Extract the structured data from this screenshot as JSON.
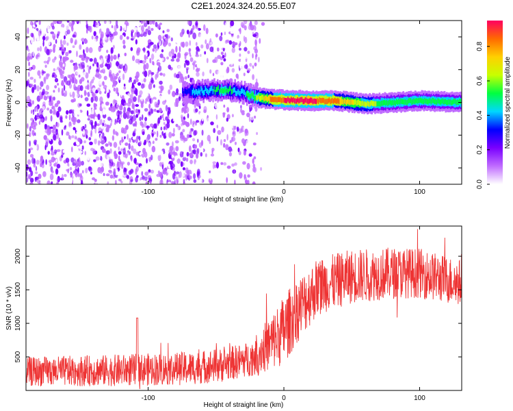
{
  "title": "C2E1.2024.324.20.55.E07",
  "chart_data": [
    {
      "type": "heatmap",
      "xlabel": "Height of straight line (km)",
      "ylabel": "Frequency (Hz)",
      "xlim": [
        -190,
        131
      ],
      "ylim": [
        -50,
        50
      ],
      "xticks": [
        -100,
        0,
        100
      ],
      "yticks": [
        -40,
        -20,
        0,
        20,
        40
      ],
      "colorbar": {
        "label": "Normalized spectral amplitude",
        "range": [
          0,
          0.95
        ],
        "ticks": [
          0.0,
          0.2,
          0.4,
          0.6,
          0.8
        ],
        "colors": [
          "#ffffff",
          "#c06cff",
          "#7a00ff",
          "#0000ff",
          "#00d8ff",
          "#00ff40",
          "#c8ff00",
          "#ffd000",
          "#ff6a00",
          "#ff0060"
        ]
      },
      "regions": [
        {
          "x_from": -190,
          "x_to": -20,
          "description": "broadband noise",
          "amplitude": 0.12
        },
        {
          "x_from": -75,
          "x_to": -20,
          "center_hz": 6,
          "amplitude": 0.4
        },
        {
          "x_from": -20,
          "x_to": 40,
          "center_hz": 1,
          "amplitude": 0.9
        },
        {
          "x_from": 40,
          "x_to": 131,
          "center_hz": 0,
          "amplitude": 0.55
        }
      ]
    },
    {
      "type": "line",
      "xlabel": "Height of straight line (km)",
      "ylabel": "SNR (10 * v/v)",
      "xlim": [
        -190,
        131
      ],
      "ylim": [
        0,
        2450
      ],
      "xticks": [
        -100,
        0,
        100
      ],
      "yticks": [
        500,
        1000,
        1500,
        2000
      ],
      "color": "#ee3333",
      "trend": {
        "x": [
          -190,
          -120,
          -70,
          -45,
          -25,
          -10,
          0,
          10,
          25,
          50,
          80,
          100,
          120,
          131
        ],
        "y": [
          280,
          300,
          330,
          380,
          470,
          700,
          900,
          1200,
          1550,
          1700,
          1750,
          1750,
          1650,
          1600
        ]
      },
      "spread": {
        "x": [
          -190,
          -25,
          0,
          30,
          131
        ],
        "y": [
          220,
          260,
          520,
          420,
          350
        ]
      }
    }
  ]
}
